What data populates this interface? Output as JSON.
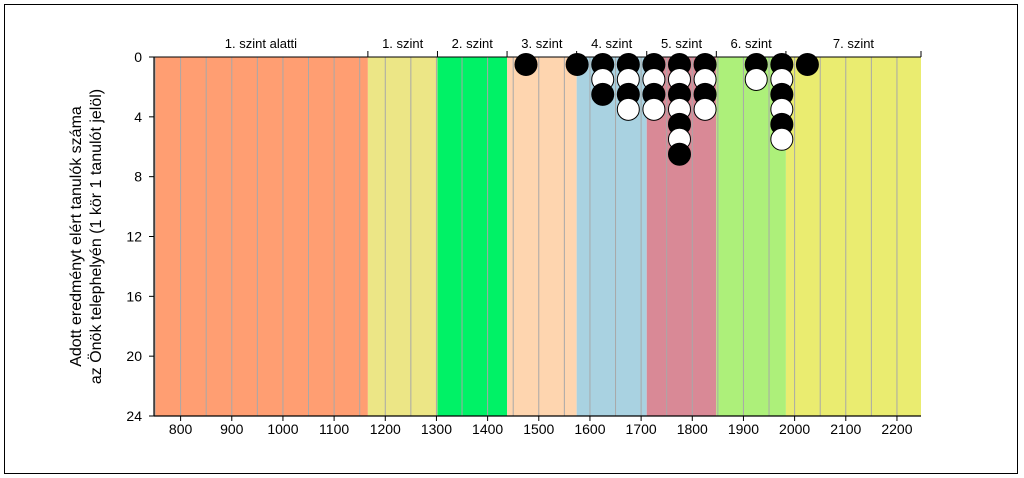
{
  "chart_data": {
    "type": "scatter",
    "xlabel": "",
    "ylabel_lines": [
      "Adott eredményt elért tanulók száma",
      "az Önök telephelyén (1 kör 1 tanulót jelöl)"
    ],
    "x_ticks": [
      800,
      900,
      1000,
      1100,
      1200,
      1300,
      1400,
      1500,
      1600,
      1700,
      1800,
      1900,
      2000,
      2100,
      2200
    ],
    "y_ticks": [
      0,
      4,
      8,
      12,
      16,
      20,
      24
    ],
    "xlim": [
      748,
      2247
    ],
    "ylim": [
      0,
      24
    ],
    "y_reversed": true,
    "grid_x_step": 50,
    "levels": [
      {
        "label": "1. szint alatti",
        "from": 748,
        "to": 1166,
        "color": "#ff9e72"
      },
      {
        "label": "1. szint",
        "from": 1166,
        "to": 1302,
        "color": "#ece686"
      },
      {
        "label": "2. szint",
        "from": 1302,
        "to": 1438,
        "color": "#00f266"
      },
      {
        "label": "3. szint",
        "from": 1438,
        "to": 1574,
        "color": "#fed5af"
      },
      {
        "label": "4. szint",
        "from": 1574,
        "to": 1711,
        "color": "#a9d2e1"
      },
      {
        "label": "5. szint",
        "from": 1711,
        "to": 1847,
        "color": "#d98996"
      },
      {
        "label": "6. szint",
        "from": 1847,
        "to": 1983,
        "color": "#adf07a"
      },
      {
        "label": "7. szint",
        "from": 1983,
        "to": 2247,
        "color": "#eaec70"
      }
    ],
    "columns": [
      {
        "x": 1475,
        "dots": [
          "black"
        ]
      },
      {
        "x": 1575,
        "dots": [
          "black"
        ]
      },
      {
        "x": 1625,
        "dots": [
          "black",
          "white",
          "black"
        ]
      },
      {
        "x": 1675,
        "dots": [
          "black",
          "white",
          "black",
          "white"
        ]
      },
      {
        "x": 1725,
        "dots": [
          "black",
          "white",
          "black",
          "white"
        ]
      },
      {
        "x": 1775,
        "dots": [
          "black",
          "white",
          "black",
          "white",
          "black",
          "white",
          "black"
        ]
      },
      {
        "x": 1825,
        "dots": [
          "black",
          "white",
          "black",
          "white"
        ]
      },
      {
        "x": 1925,
        "dots": [
          "black",
          "white"
        ]
      },
      {
        "x": 1975,
        "dots": [
          "black",
          "white",
          "black",
          "white",
          "black",
          "white"
        ]
      },
      {
        "x": 2025,
        "dots": [
          "black"
        ]
      }
    ],
    "colors": {
      "grid": "#a8a8a8",
      "axis": "#000000",
      "dot_black": "#000000",
      "dot_white": "#ffffff"
    }
  }
}
